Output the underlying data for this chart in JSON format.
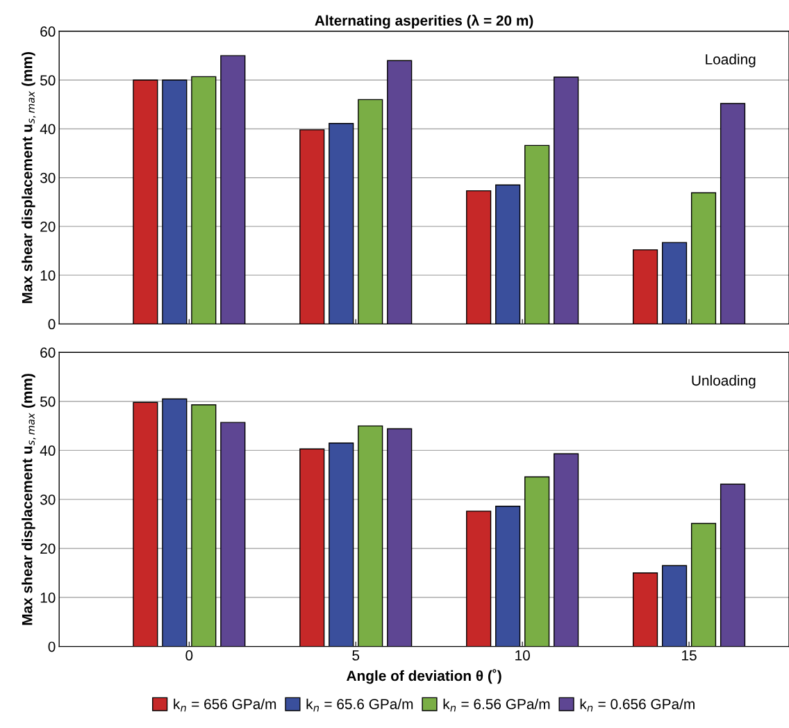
{
  "chart_data": [
    {
      "type": "bar",
      "title": "Alternating asperities (λ = 20 m)",
      "ylabel": "Max shear displacement u$_{s,max}$ (mm)",
      "categories": [
        "0",
        "5",
        "10",
        "15"
      ],
      "tick_labels": "y",
      "ylim": [
        0,
        60
      ],
      "yticks": [
        0,
        10,
        20,
        30,
        40,
        50,
        60
      ],
      "grid": "y",
      "legend": false,
      "annotations": [
        "Loading"
      ],
      "series": [
        {
          "color": "#c62828",
          "values": [
            50,
            39.8,
            27.3,
            15.2
          ]
        },
        {
          "color": "#3a4f9c",
          "values": [
            50,
            41.1,
            28.5,
            16.7
          ]
        },
        {
          "color": "#7aae45",
          "values": [
            50.7,
            46,
            36.6,
            26.9
          ]
        },
        {
          "color": "#5e4693",
          "values": [
            55,
            54,
            50.6,
            45.2
          ]
        }
      ]
    },
    {
      "type": "bar",
      "ylabel": "Max shear displacement u$_{s,max}$ (mm)",
      "xlabel": "Angle of deviation θ (˚)",
      "categories": [
        "0",
        "5",
        "10",
        "15"
      ],
      "ylim": [
        0,
        60
      ],
      "yticks": [
        0,
        10,
        20,
        30,
        40,
        50,
        60
      ],
      "grid": "y",
      "legend": "bottom",
      "annotations": [
        "Unloading"
      ],
      "series": [
        {
          "name": "k$_{n}$ = 656 GPa/m",
          "color": "#c62828",
          "values": [
            49.8,
            40.3,
            27.6,
            15
          ]
        },
        {
          "name": "k$_{n}$ = 65.6 GPa/m",
          "color": "#3a4f9c",
          "values": [
            50.5,
            41.5,
            28.6,
            16.5
          ]
        },
        {
          "name": "k$_{n}$ = 6.56 GPa/m",
          "color": "#7aae45",
          "values": [
            49.3,
            45,
            34.6,
            25.1
          ]
        },
        {
          "name": "k$_{n}$ = 0.656 GPa/m",
          "color": "#5e4693",
          "values": [
            45.7,
            44.4,
            39.3,
            33.1
          ]
        }
      ]
    }
  ]
}
